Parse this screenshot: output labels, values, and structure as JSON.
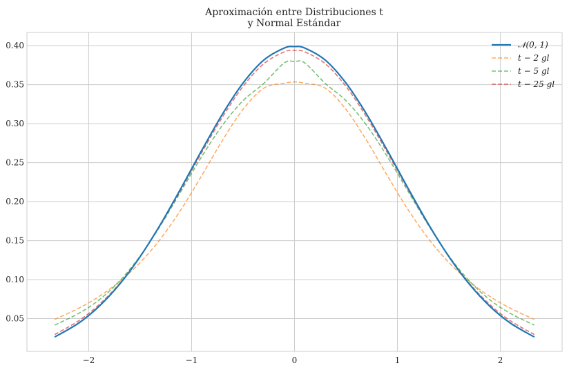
{
  "chart_data": {
    "type": "line",
    "title_line1": "Aproximación entre Distribuciones t",
    "title_line2": "y Normal Estándar",
    "xlabel": "",
    "ylabel": "",
    "xlim": [
      -2.6,
      2.6
    ],
    "ylim": [
      0.008,
      0.417
    ],
    "x_ticks": [
      -2,
      -1,
      0,
      1,
      2
    ],
    "x_tick_labels": [
      "−2",
      "−1",
      "0",
      "1",
      "2"
    ],
    "y_ticks": [
      0.05,
      0.1,
      0.15,
      0.2,
      0.25,
      0.3,
      0.35,
      0.4
    ],
    "y_tick_labels": [
      "0.05",
      "0.10",
      "0.15",
      "0.20",
      "0.25",
      "0.30",
      "0.35",
      "0.40"
    ],
    "grid": true,
    "legend_position": "top-right",
    "x": [
      -2.33,
      -2.1,
      -1.9,
      -1.7,
      -1.5,
      -1.3,
      -1.1,
      -0.9,
      -0.7,
      -0.5,
      -0.3,
      -0.1,
      0,
      0.1,
      0.3,
      0.5,
      0.7,
      0.9,
      1.1,
      1.3,
      1.5,
      1.7,
      1.9,
      2.1,
      2.33
    ],
    "series": [
      {
        "name": "𝒩(0, 1)",
        "color": "#1f77b4",
        "style": "solid",
        "values": [
          0.0264,
          0.044,
          0.0656,
          0.094,
          0.1295,
          0.1714,
          0.2179,
          0.2661,
          0.3123,
          0.3521,
          0.3814,
          0.397,
          0.3989,
          0.397,
          0.3814,
          0.3521,
          0.3123,
          0.2661,
          0.2179,
          0.1714,
          0.1295,
          0.094,
          0.0656,
          0.044,
          0.0264
        ]
      },
      {
        "name": "t − 2 gl",
        "color": "#ff7f0e",
        "style": "dashed",
        "values": [
          0.049,
          0.0631,
          0.0783,
          0.0975,
          0.1219,
          0.1527,
          0.1904,
          0.2338,
          0.2786,
          0.3183,
          0.3454,
          0.3519,
          0.3536,
          0.3519,
          0.3454,
          0.3183,
          0.2786,
          0.2338,
          0.1904,
          0.1527,
          0.1219,
          0.0975,
          0.0783,
          0.0631,
          0.049
        ]
      },
      {
        "name": "t − 5 gl",
        "color": "#2ca02c",
        "style": "dashed",
        "values": [
          0.0417,
          0.0565,
          0.0739,
          0.0982,
          0.1303,
          0.1699,
          0.214,
          0.2581,
          0.298,
          0.3295,
          0.3515,
          0.3779,
          0.3796,
          0.3779,
          0.3515,
          0.3295,
          0.298,
          0.2581,
          0.214,
          0.1699,
          0.1303,
          0.0982,
          0.0739,
          0.0565,
          0.0417
        ]
      },
      {
        "name": "t − 25 gl",
        "color": "#d62728",
        "style": "dashed",
        "values": [
          0.0296,
          0.047,
          0.0678,
          0.0951,
          0.1297,
          0.1706,
          0.2162,
          0.2632,
          0.3085,
          0.3478,
          0.3767,
          0.3921,
          0.394,
          0.3921,
          0.3767,
          0.3478,
          0.3085,
          0.2632,
          0.2162,
          0.1706,
          0.1297,
          0.0951,
          0.0678,
          0.047,
          0.0296
        ]
      }
    ]
  }
}
